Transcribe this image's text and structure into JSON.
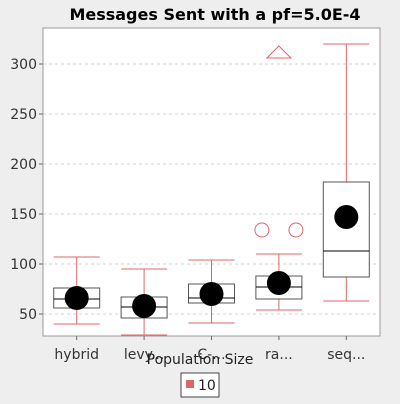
{
  "chart_data": {
    "type": "box",
    "title": "Messages Sent  with a pf=5.0E-4",
    "xlabel": "Population Size",
    "ylabel": "",
    "categories": [
      "hybrid",
      "levy...",
      "C-...",
      "ra...",
      "seq..."
    ],
    "yticks": [
      50,
      100,
      150,
      200,
      250,
      300
    ],
    "ylim": [
      28,
      336
    ],
    "grid": true,
    "legend": {
      "position": "bottom-center",
      "entries": [
        {
          "label": "10",
          "color": "#e06666"
        }
      ]
    },
    "series": [
      {
        "name": "10",
        "color": "#e06666",
        "boxes": [
          {
            "category": "hybrid",
            "whisker_low": 40,
            "q1": 56,
            "median": 65,
            "q3": 76,
            "whisker_high": 107,
            "mean": 66,
            "outliers": [],
            "extremes": []
          },
          {
            "category": "levy...",
            "whisker_low": 29,
            "q1": 46,
            "median": 57,
            "q3": 67,
            "whisker_high": 95,
            "mean": 58,
            "outliers": [],
            "extremes": []
          },
          {
            "category": "C-...",
            "whisker_low": 41,
            "q1": 61,
            "median": 66,
            "q3": 80,
            "whisker_high": 104,
            "mean": 70,
            "outliers": [],
            "extremes": []
          },
          {
            "category": "ra...",
            "whisker_low": 54,
            "q1": 65,
            "median": 77,
            "q3": 88,
            "whisker_high": 110,
            "mean": 81,
            "outliers": [
              134,
              134
            ],
            "extremes": [
              311
            ]
          },
          {
            "category": "seq...",
            "whisker_low": 63,
            "q1": 87,
            "median": 113,
            "q3": 182,
            "whisker_high": 320,
            "mean": 147,
            "outliers": [],
            "extremes": []
          }
        ]
      }
    ],
    "colors": {
      "whisker": "#e06666",
      "box": "#555555",
      "mean": "#000000",
      "plot_bg": "#ffffff",
      "page_bg": "#eeeeee"
    }
  }
}
